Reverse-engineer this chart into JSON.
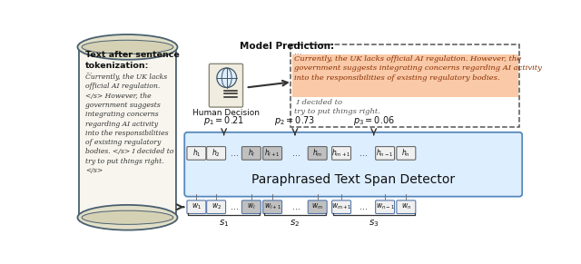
{
  "scroll_title": "Text after sentence\ntokenization:",
  "scroll_text_line1": "...",
  "scroll_text_body": "Currently, the UK lacks\nofficial AI regulation.\n</s> However, the\ngovernment suggests\nintegrating concerns\nregarding AI activity\ninto the responsibilities\nof existing regulatory\nbodies. </s> I decided to\ntry to put things right.\n</s>",
  "model_prediction_title": "Model Prediction:",
  "prediction_dots": "...",
  "prediction_text_orange": "Currently, the UK lacks official AI regulation. However, the\ngovernment suggests integrating concerns regarding AI activity\ninto the responsibilities of existing regulatory bodies.",
  "prediction_text_plain": " I decided to\ntry to put things right.",
  "human_decision_label": "Human Decision",
  "detector_label": "Paraphrased Text Span Detector",
  "p1_label": "$p_1 = 0.21$",
  "p2_label": "$p_2 = 0.73$",
  "p3_label": "$p_3 = 0.06$",
  "s1_label": "$s_1$",
  "s2_label": "$s_2$",
  "s3_label": "$s_3$",
  "bg_color": "#ffffff",
  "scroll_bg": "#f7f5ee",
  "scroll_edge": "#4a6070",
  "detector_bg": "#ddeeff",
  "detector_edge": "#5588bb",
  "box_normal_color": "#f0f0f0",
  "box_highlight_color": "#c0c0c0",
  "box_edge_h": "#666666",
  "box_edge_w": "#5577aa",
  "orange_bg": "#f9c9a8",
  "orange_text": "#8B3000",
  "plain_text_color": "#555555",
  "arrow_color": "#333333",
  "mp_edge": "#555555"
}
